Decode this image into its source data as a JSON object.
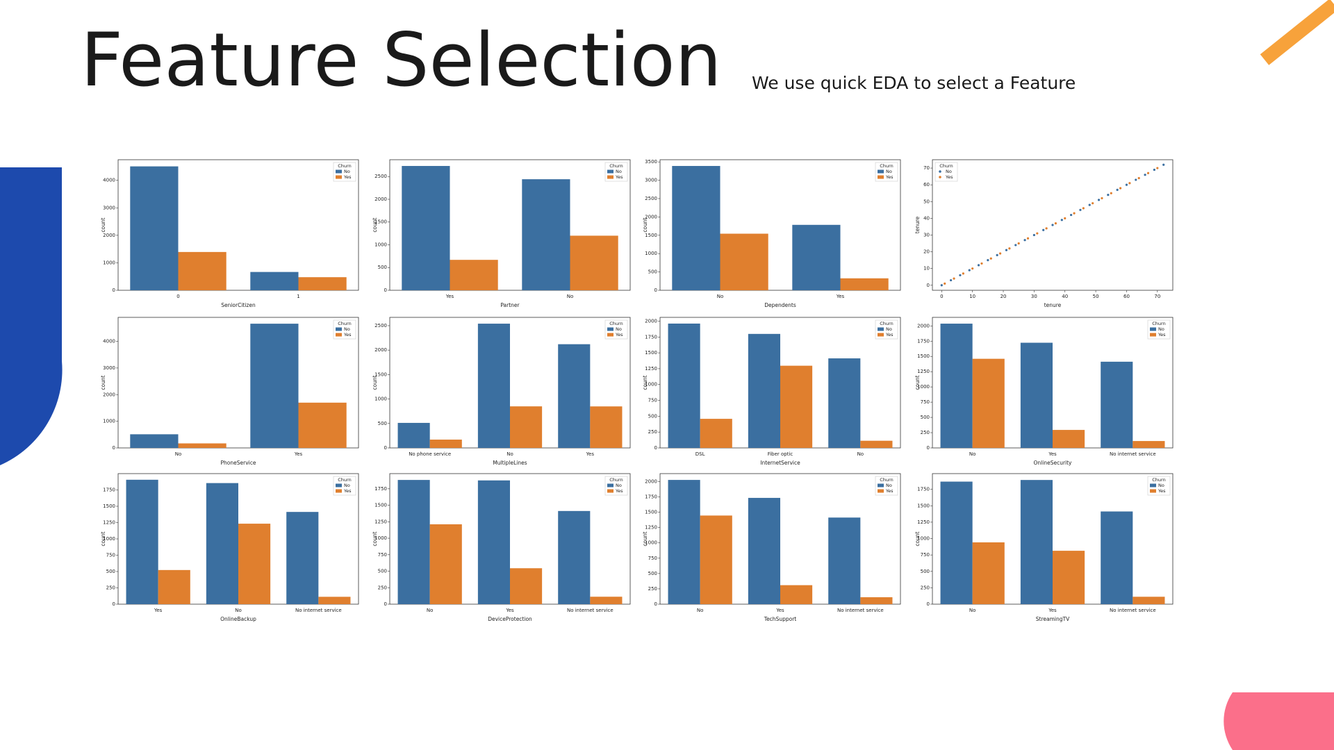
{
  "title": "Feature Selection",
  "subtitle": "We use quick EDA to select a Feature",
  "chart_data": [
    {
      "type": "bar",
      "xlabel": "SeniorCitizen",
      "ylabel": "count",
      "legend_title": "Churn",
      "categories": [
        "0",
        "1"
      ],
      "series": [
        {
          "name": "No",
          "color": "#3b6fa0",
          "values": [
            4508,
            666
          ]
        },
        {
          "name": "Yes",
          "color": "#e07f2e",
          "values": [
            1393,
            476
          ]
        }
      ],
      "ylim": [
        0,
        4750
      ],
      "yticks": [
        0,
        1000,
        2000,
        3000,
        4000
      ]
    },
    {
      "type": "bar",
      "xlabel": "Partner",
      "ylabel": "count",
      "legend_title": "Churn",
      "categories": [
        "Yes",
        "No"
      ],
      "series": [
        {
          "name": "No",
          "color": "#3b6fa0",
          "values": [
            2733,
            2441
          ]
        },
        {
          "name": "Yes",
          "color": "#e07f2e",
          "values": [
            669,
            1200
          ]
        }
      ],
      "ylim": [
        0,
        2870
      ],
      "yticks": [
        0,
        500,
        1000,
        1500,
        2000,
        2500
      ]
    },
    {
      "type": "bar",
      "xlabel": "Dependents",
      "ylabel": "count",
      "legend_title": "Churn",
      "categories": [
        "No",
        "Yes"
      ],
      "series": [
        {
          "name": "No",
          "color": "#3b6fa0",
          "values": [
            3390,
            1784
          ]
        },
        {
          "name": "Yes",
          "color": "#e07f2e",
          "values": [
            1543,
            326
          ]
        }
      ],
      "ylim": [
        0,
        3560
      ],
      "yticks": [
        0,
        500,
        1000,
        1500,
        2000,
        2500,
        3000,
        3500
      ]
    },
    {
      "type": "scatter",
      "xlabel": "tenure",
      "ylabel": "tenure",
      "legend_title": "Churn",
      "series": [
        {
          "name": "No",
          "color": "#3b6fa0",
          "x": [
            0,
            3,
            6,
            9,
            12,
            15,
            18,
            21,
            24,
            27,
            30,
            33,
            36,
            39,
            42,
            45,
            48,
            51,
            54,
            57,
            60,
            63,
            66,
            69,
            72
          ],
          "y": [
            0,
            3,
            6,
            9,
            12,
            15,
            18,
            21,
            24,
            27,
            30,
            33,
            36,
            39,
            42,
            45,
            48,
            51,
            54,
            57,
            60,
            63,
            66,
            69,
            72
          ]
        },
        {
          "name": "Yes",
          "color": "#e07f2e",
          "x": [
            1,
            4,
            7,
            10,
            13,
            16,
            19,
            22,
            25,
            28,
            31,
            34,
            37,
            40,
            43,
            46,
            49,
            52,
            55,
            58,
            61,
            64,
            67,
            70
          ],
          "y": [
            1,
            4,
            7,
            10,
            13,
            16,
            19,
            22,
            25,
            28,
            31,
            34,
            37,
            40,
            43,
            46,
            49,
            52,
            55,
            58,
            61,
            64,
            67,
            70
          ]
        }
      ],
      "xlim": [
        -3,
        75
      ],
      "xticks": [
        0,
        10,
        20,
        30,
        40,
        50,
        60,
        70
      ],
      "ylim": [
        -3,
        75
      ],
      "yticks": [
        0,
        10,
        20,
        30,
        40,
        50,
        60,
        70
      ]
    },
    {
      "type": "bar",
      "xlabel": "PhoneService",
      "ylabel": "count",
      "legend_title": "Churn",
      "categories": [
        "No",
        "Yes"
      ],
      "series": [
        {
          "name": "No",
          "color": "#3b6fa0",
          "values": [
            512,
            4662
          ]
        },
        {
          "name": "Yes",
          "color": "#e07f2e",
          "values": [
            170,
            1699
          ]
        }
      ],
      "ylim": [
        0,
        4900
      ],
      "yticks": [
        0,
        1000,
        2000,
        3000,
        4000
      ]
    },
    {
      "type": "bar",
      "xlabel": "MultipleLines",
      "ylabel": "count",
      "legend_title": "Churn",
      "categories": [
        "No phone service",
        "No",
        "Yes"
      ],
      "series": [
        {
          "name": "No",
          "color": "#3b6fa0",
          "values": [
            512,
            2541,
            2121
          ]
        },
        {
          "name": "Yes",
          "color": "#e07f2e",
          "values": [
            170,
            850,
            849
          ]
        }
      ],
      "ylim": [
        0,
        2670
      ],
      "yticks": [
        0,
        500,
        1000,
        1500,
        2000,
        2500
      ]
    },
    {
      "type": "bar",
      "xlabel": "InternetService",
      "ylabel": "count",
      "legend_title": "Churn",
      "categories": [
        "DSL",
        "Fiber optic",
        "No"
      ],
      "series": [
        {
          "name": "No",
          "color": "#3b6fa0",
          "values": [
            1962,
            1799,
            1413
          ]
        },
        {
          "name": "Yes",
          "color": "#e07f2e",
          "values": [
            459,
            1297,
            113
          ]
        }
      ],
      "ylim": [
        0,
        2060
      ],
      "yticks": [
        0,
        250,
        500,
        750,
        1000,
        1250,
        1500,
        1750,
        2000
      ]
    },
    {
      "type": "bar",
      "xlabel": "OnlineSecurity",
      "ylabel": "count",
      "legend_title": "Churn",
      "categories": [
        "No",
        "Yes",
        "No internet service"
      ],
      "series": [
        {
          "name": "No",
          "color": "#3b6fa0",
          "values": [
            2037,
            1724,
            1413
          ]
        },
        {
          "name": "Yes",
          "color": "#e07f2e",
          "values": [
            1461,
            295,
            113
          ]
        }
      ],
      "ylim": [
        0,
        2140
      ],
      "yticks": [
        0,
        250,
        500,
        750,
        1000,
        1250,
        1500,
        1750,
        2000
      ]
    },
    {
      "type": "bar",
      "xlabel": "OnlineBackup",
      "ylabel": "count",
      "legend_title": "Churn",
      "categories": [
        "Yes",
        "No",
        "No internet service"
      ],
      "series": [
        {
          "name": "No",
          "color": "#3b6fa0",
          "values": [
            1906,
            1855,
            1413
          ]
        },
        {
          "name": "Yes",
          "color": "#e07f2e",
          "values": [
            523,
            1233,
            113
          ]
        }
      ],
      "ylim": [
        0,
        2000
      ],
      "yticks": [
        0,
        250,
        500,
        750,
        1000,
        1250,
        1500,
        1750
      ]
    },
    {
      "type": "bar",
      "xlabel": "DeviceProtection",
      "ylabel": "count",
      "legend_title": "Churn",
      "categories": [
        "No",
        "Yes",
        "No internet service"
      ],
      "series": [
        {
          "name": "No",
          "color": "#3b6fa0",
          "values": [
            1884,
            1877,
            1413
          ]
        },
        {
          "name": "Yes",
          "color": "#e07f2e",
          "values": [
            1211,
            545,
            113
          ]
        }
      ],
      "ylim": [
        0,
        1980
      ],
      "yticks": [
        0,
        250,
        500,
        750,
        1000,
        1250,
        1500,
        1750
      ]
    },
    {
      "type": "bar",
      "xlabel": "TechSupport",
      "ylabel": "count",
      "legend_title": "Churn",
      "categories": [
        "No",
        "Yes",
        "No internet service"
      ],
      "series": [
        {
          "name": "No",
          "color": "#3b6fa0",
          "values": [
            2027,
            1734,
            1413
          ]
        },
        {
          "name": "Yes",
          "color": "#e07f2e",
          "values": [
            1446,
            310,
            113
          ]
        }
      ],
      "ylim": [
        0,
        2130
      ],
      "yticks": [
        0,
        250,
        500,
        750,
        1000,
        1250,
        1500,
        1750,
        2000
      ]
    },
    {
      "type": "bar",
      "xlabel": "StreamingTV",
      "ylabel": "count",
      "legend_title": "Churn",
      "categories": [
        "No",
        "Yes",
        "No internet service"
      ],
      "series": [
        {
          "name": "No",
          "color": "#3b6fa0",
          "values": [
            1868,
            1893,
            1413
          ]
        },
        {
          "name": "Yes",
          "color": "#e07f2e",
          "values": [
            942,
            814,
            113
          ]
        }
      ],
      "ylim": [
        0,
        1990
      ],
      "yticks": [
        0,
        250,
        500,
        750,
        1000,
        1250,
        1500,
        1750
      ]
    }
  ]
}
